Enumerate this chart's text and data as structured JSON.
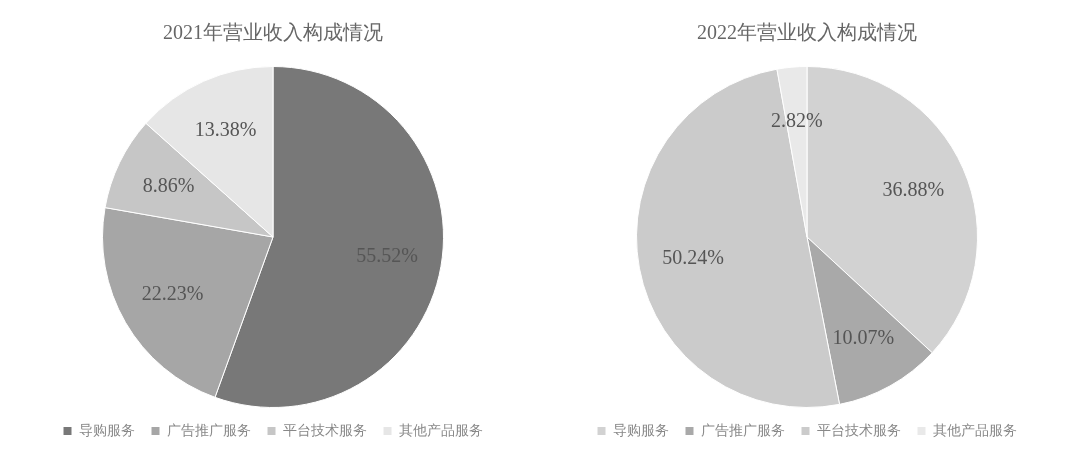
{
  "chart_data": [
    {
      "type": "pie",
      "title": "2021年营业收入构成情况",
      "categories": [
        "导购服务",
        "广告推广服务",
        "平台技术服务",
        "其他产品服务"
      ],
      "values": [
        55.52,
        22.23,
        8.86,
        13.38
      ],
      "value_labels": [
        "55.52%",
        "22.23%",
        "8.86%",
        "13.38%"
      ],
      "colors": [
        "#787878",
        "#a6a6a6",
        "#c6c6c6",
        "#e6e6e6"
      ],
      "legend": "bottom"
    },
    {
      "type": "pie",
      "title": "2022年营业收入构成情况",
      "categories": [
        "导购服务",
        "广告推广服务",
        "平台技术服务",
        "其他产品服务"
      ],
      "values": [
        36.88,
        10.07,
        50.24,
        2.82
      ],
      "value_labels": [
        "36.88%",
        "10.07%",
        "50.24%",
        "2.82%"
      ],
      "colors": [
        "#d2d2d2",
        "#a9a9a9",
        "#cbcbcb",
        "#e9e9e9"
      ],
      "legend": "bottom"
    }
  ]
}
